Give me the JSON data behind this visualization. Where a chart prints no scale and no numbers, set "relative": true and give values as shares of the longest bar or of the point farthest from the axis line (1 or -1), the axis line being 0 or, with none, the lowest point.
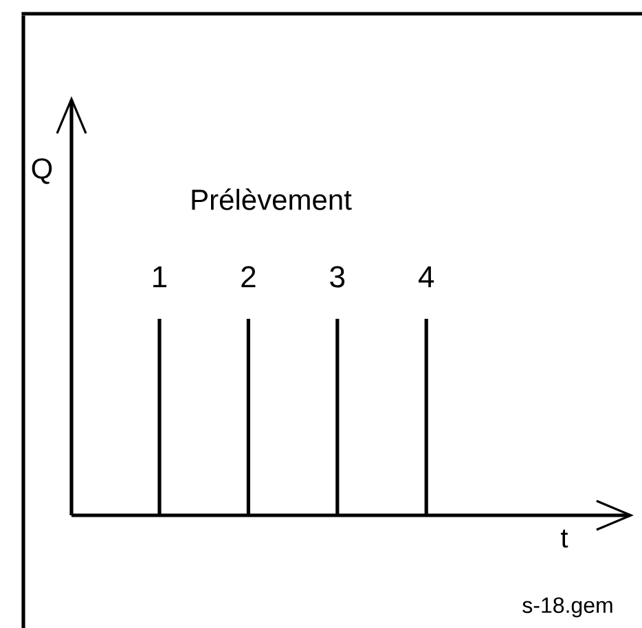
{
  "chart_data": {
    "type": "bar",
    "relative": true,
    "categories": [
      "1",
      "2",
      "3",
      "4"
    ],
    "values": [
      1,
      1,
      1,
      1
    ],
    "color": "#000000",
    "xlabel": "t",
    "ylabel": "Q",
    "annotations": [
      "Prélèvement",
      "s-18.gem"
    ]
  }
}
